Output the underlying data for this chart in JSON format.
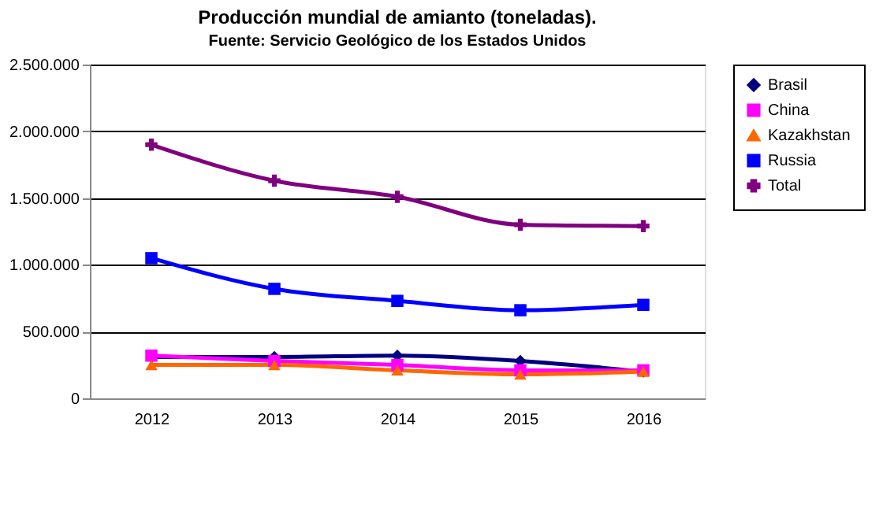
{
  "chart_data": {
    "type": "line",
    "title": "Producción mundial de amianto (toneladas).",
    "subtitle": "Fuente: Servicio Geológico de los Estados Unidos",
    "categories": [
      "2012",
      "2013",
      "2014",
      "2015",
      "2016"
    ],
    "series": [
      {
        "name": "Brasil",
        "color": "#000080",
        "marker": "diamond",
        "values": [
          310000,
          310000,
          320000,
          280000,
          200000
        ]
      },
      {
        "name": "China",
        "color": "#ff00ff",
        "marker": "square",
        "values": [
          320000,
          280000,
          250000,
          210000,
          210000
        ]
      },
      {
        "name": "Kazakhstan",
        "color": "#ff6600",
        "marker": "triangle",
        "values": [
          250000,
          250000,
          210000,
          180000,
          200000
        ]
      },
      {
        "name": "Russia",
        "color": "#0000ff",
        "marker": "square",
        "values": [
          1050000,
          820000,
          730000,
          660000,
          700000
        ]
      },
      {
        "name": "Total",
        "color": "#800080",
        "marker": "cross",
        "values": [
          1900000,
          1630000,
          1510000,
          1300000,
          1290000
        ]
      }
    ],
    "ylim": [
      0,
      2500000
    ],
    "yticks": [
      0,
      {
        "value": 500000,
        "label": "500.000"
      },
      {
        "value": 1000000,
        "label": "1.000.000"
      },
      {
        "value": 1500000,
        "label": "1.500.000"
      },
      {
        "value": 2000000,
        "label": "2.000.000"
      },
      {
        "value": 2500000,
        "label": "2.500.000"
      }
    ],
    "grid": "y",
    "legend": "right",
    "line_style": "solid"
  }
}
